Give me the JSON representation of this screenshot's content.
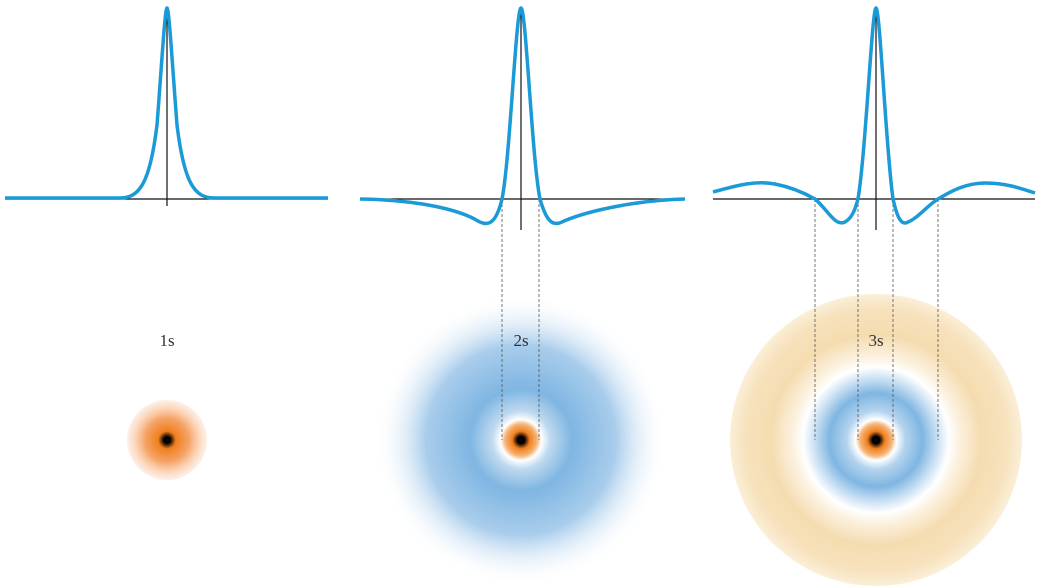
{
  "orbitals": [
    {
      "label": "1s"
    },
    {
      "label": "2s"
    },
    {
      "label": "3s"
    }
  ]
}
